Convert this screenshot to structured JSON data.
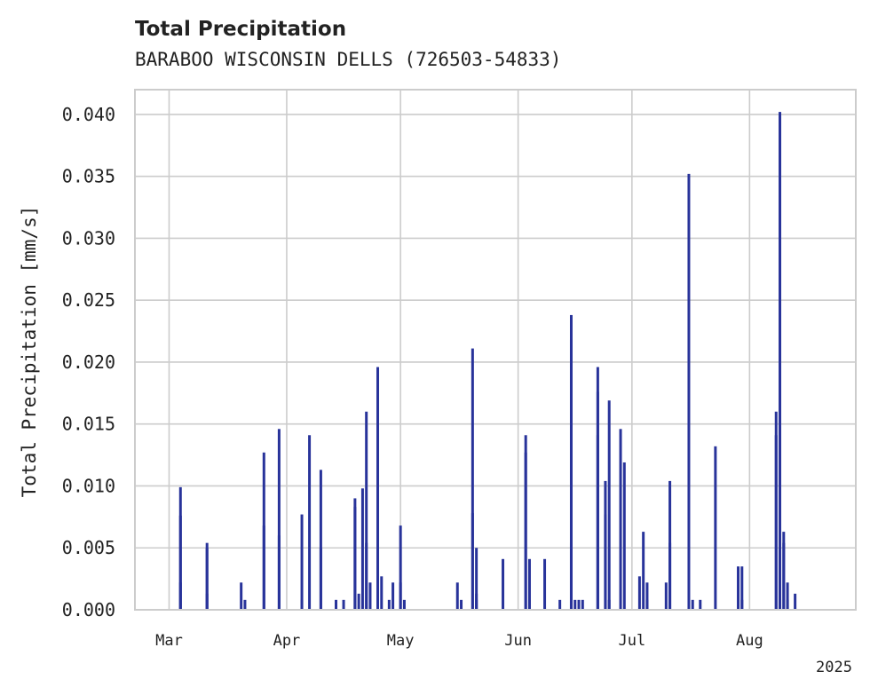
{
  "chart_data": {
    "type": "bar",
    "title": "Total Precipitation",
    "subtitle": "BARABOO WISCONSIN DELLS (726503-54833)",
    "ylabel": "Total Precipitation [mm/s]",
    "xlabel": "",
    "x_axis": {
      "type": "date",
      "range": [
        "2025-02-20",
        "2025-08-29"
      ],
      "ticks": [
        {
          "date": "2025-03-01",
          "label": "Mar"
        },
        {
          "date": "2025-04-01",
          "label": "Apr"
        },
        {
          "date": "2025-05-01",
          "label": "May"
        },
        {
          "date": "2025-06-01",
          "label": "Jun"
        },
        {
          "date": "2025-07-01",
          "label": "Jul"
        },
        {
          "date": "2025-08-01",
          "label": "Aug"
        }
      ],
      "year_label": "2025"
    },
    "ylim": [
      0,
      0.042
    ],
    "yticks": [
      "0.000",
      "0.005",
      "0.010",
      "0.015",
      "0.020",
      "0.025",
      "0.030",
      "0.035",
      "0.040"
    ],
    "grid": true,
    "bar_color": "#28339a",
    "series": [
      {
        "points": [
          [
            "2025-03-04",
            0.0022
          ],
          [
            "2025-03-04",
            0.0076
          ],
          [
            "2025-03-04",
            0.0099
          ],
          [
            "2025-03-11",
            0.005
          ],
          [
            "2025-03-11",
            0.0054
          ],
          [
            "2025-03-11",
            0.0013
          ],
          [
            "2025-03-20",
            0.0022
          ],
          [
            "2025-03-21",
            0.0008
          ],
          [
            "2025-03-26",
            0.0068
          ],
          [
            "2025-03-26",
            0.0127
          ],
          [
            "2025-03-30",
            0.0146
          ],
          [
            "2025-03-30",
            0.006
          ],
          [
            "2025-04-05",
            0.0077
          ],
          [
            "2025-04-05",
            0.0008
          ],
          [
            "2025-04-07",
            0.0141
          ],
          [
            "2025-04-10",
            0.005
          ],
          [
            "2025-04-10",
            0.0113
          ],
          [
            "2025-04-14",
            0.0008
          ],
          [
            "2025-04-16",
            0.0008
          ],
          [
            "2025-04-19",
            0.009
          ],
          [
            "2025-04-19",
            0.0083
          ],
          [
            "2025-04-20",
            0.0013
          ],
          [
            "2025-04-21",
            0.0098
          ],
          [
            "2025-04-22",
            0.016
          ],
          [
            "2025-04-22",
            0.0054
          ],
          [
            "2025-04-23",
            0.0022
          ],
          [
            "2025-04-25",
            0.0196
          ],
          [
            "2025-04-26",
            0.0027
          ],
          [
            "2025-04-28",
            0.0008
          ],
          [
            "2025-04-29",
            0.0022
          ],
          [
            "2025-05-01",
            0.0068
          ],
          [
            "2025-05-01",
            0.0022
          ],
          [
            "2025-05-02",
            0.0008
          ],
          [
            "2025-05-16",
            0.0022
          ],
          [
            "2025-05-17",
            0.0008
          ],
          [
            "2025-05-20",
            0.0211
          ],
          [
            "2025-05-20",
            0.0078
          ],
          [
            "2025-05-21",
            0.005
          ],
          [
            "2025-05-21",
            0.0013
          ],
          [
            "2025-05-21",
            0.0008
          ],
          [
            "2025-05-28",
            0.0041
          ],
          [
            "2025-06-03",
            0.0127
          ],
          [
            "2025-06-03",
            0.0141
          ],
          [
            "2025-06-04",
            0.0041
          ],
          [
            "2025-06-04",
            0.0008
          ],
          [
            "2025-06-08",
            0.0041
          ],
          [
            "2025-06-12",
            0.0008
          ],
          [
            "2025-06-15",
            0.0238
          ],
          [
            "2025-06-15",
            0.0054
          ],
          [
            "2025-06-15",
            0.0218
          ],
          [
            "2025-06-16",
            0.0008
          ],
          [
            "2025-06-17",
            0.0008
          ],
          [
            "2025-06-18",
            0.0008
          ],
          [
            "2025-06-22",
            0.0141
          ],
          [
            "2025-06-22",
            0.0196
          ],
          [
            "2025-06-22",
            0.0176
          ],
          [
            "2025-06-24",
            0.0077
          ],
          [
            "2025-06-24",
            0.0104
          ],
          [
            "2025-06-25",
            0.0169
          ],
          [
            "2025-06-25",
            0.0008
          ],
          [
            "2025-06-28",
            0.0146
          ],
          [
            "2025-06-29",
            0.0119
          ],
          [
            "2025-07-03",
            0.0027
          ],
          [
            "2025-07-04",
            0.0063
          ],
          [
            "2025-07-05",
            0.0022
          ],
          [
            "2025-07-05",
            0.0008
          ],
          [
            "2025-07-10",
            0.0022
          ],
          [
            "2025-07-11",
            0.0104
          ],
          [
            "2025-07-11",
            0.0054
          ],
          [
            "2025-07-16",
            0.0352
          ],
          [
            "2025-07-17",
            0.0008
          ],
          [
            "2025-07-19",
            0.0008
          ],
          [
            "2025-07-23",
            0.0132
          ],
          [
            "2025-07-29",
            0.0035
          ],
          [
            "2025-07-30",
            0.0035
          ],
          [
            "2025-07-30",
            0.0008
          ],
          [
            "2025-08-08",
            0.0141
          ],
          [
            "2025-08-08",
            0.016
          ],
          [
            "2025-08-09",
            0.0402
          ],
          [
            "2025-08-09",
            0.005
          ],
          [
            "2025-08-09",
            0.0008
          ],
          [
            "2025-08-10",
            0.0054
          ],
          [
            "2025-08-10",
            0.0063
          ],
          [
            "2025-08-11",
            0.0022
          ],
          [
            "2025-08-11",
            0.0008
          ],
          [
            "2025-08-13",
            0.0013
          ]
        ]
      }
    ]
  }
}
